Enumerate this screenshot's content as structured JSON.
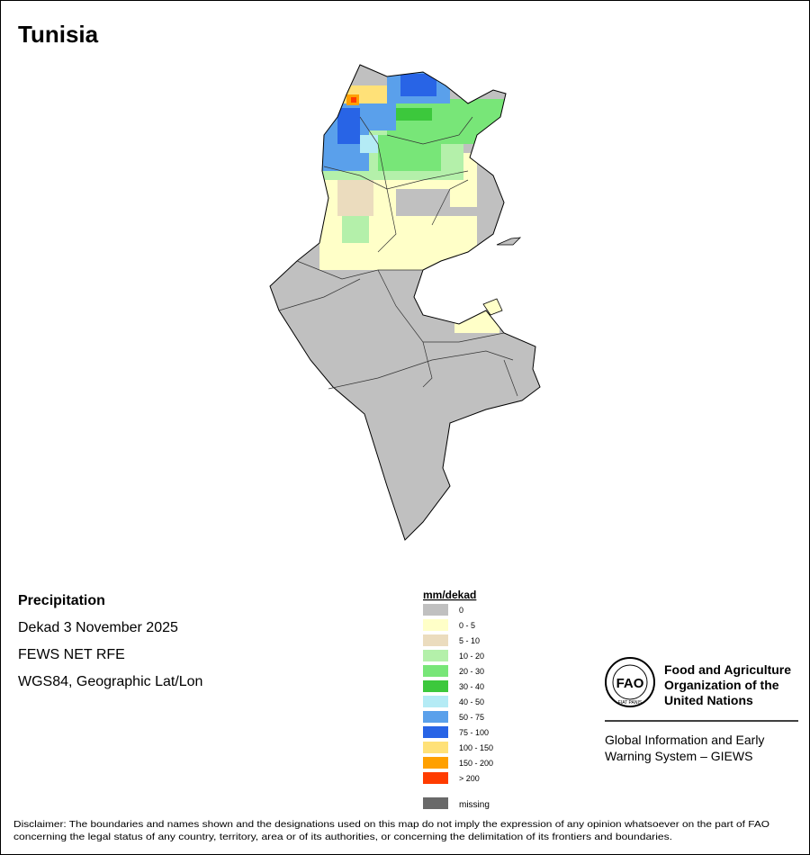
{
  "title": "Tunisia",
  "info": {
    "heading": "Precipitation",
    "lines": [
      "Dekad 3 November 2025",
      "FEWS NET RFE",
      "WGS84, Geographic Lat/Lon"
    ]
  },
  "legend": {
    "title": "mm/dekad",
    "items": [
      {
        "label": "0",
        "color": "#c0c0c0"
      },
      {
        "label": "0 - 5",
        "color": "#ffffc8"
      },
      {
        "label": "5 - 10",
        "color": "#ebdcbe"
      },
      {
        "label": "10 - 20",
        "color": "#b4f0aa"
      },
      {
        "label": "20 - 30",
        "color": "#78e678"
      },
      {
        "label": "30 - 40",
        "color": "#3cc83c"
      },
      {
        "label": "40 - 50",
        "color": "#b4ebf5"
      },
      {
        "label": "50 - 75",
        "color": "#5aa0eb"
      },
      {
        "label": "75 - 100",
        "color": "#2864e6"
      },
      {
        "label": "100 - 150",
        "color": "#ffe178"
      },
      {
        "label": "150 - 200",
        "color": "#ffa000"
      },
      {
        "label": "> 200",
        "color": "#ff3c00"
      }
    ],
    "missing": {
      "label": "missing",
      "color": "#696969"
    }
  },
  "logo": {
    "acronym": "FAO",
    "motto": "FIAT PANIS",
    "organization": [
      "Food and Agriculture",
      "Organization of the",
      "United Nations"
    ],
    "system": [
      "Global Information and Early",
      "Warning System – GIEWS"
    ]
  },
  "disclaimer": [
    "Disclaimer: The boundaries and names shown and the designations used on this map do not imply the expression of any opinion whatsoever on the part of FAO",
    "concerning the legal status of any country, territory, area or of its authorities, or concerning the delimitation of its frontiers and boundaries."
  ]
}
